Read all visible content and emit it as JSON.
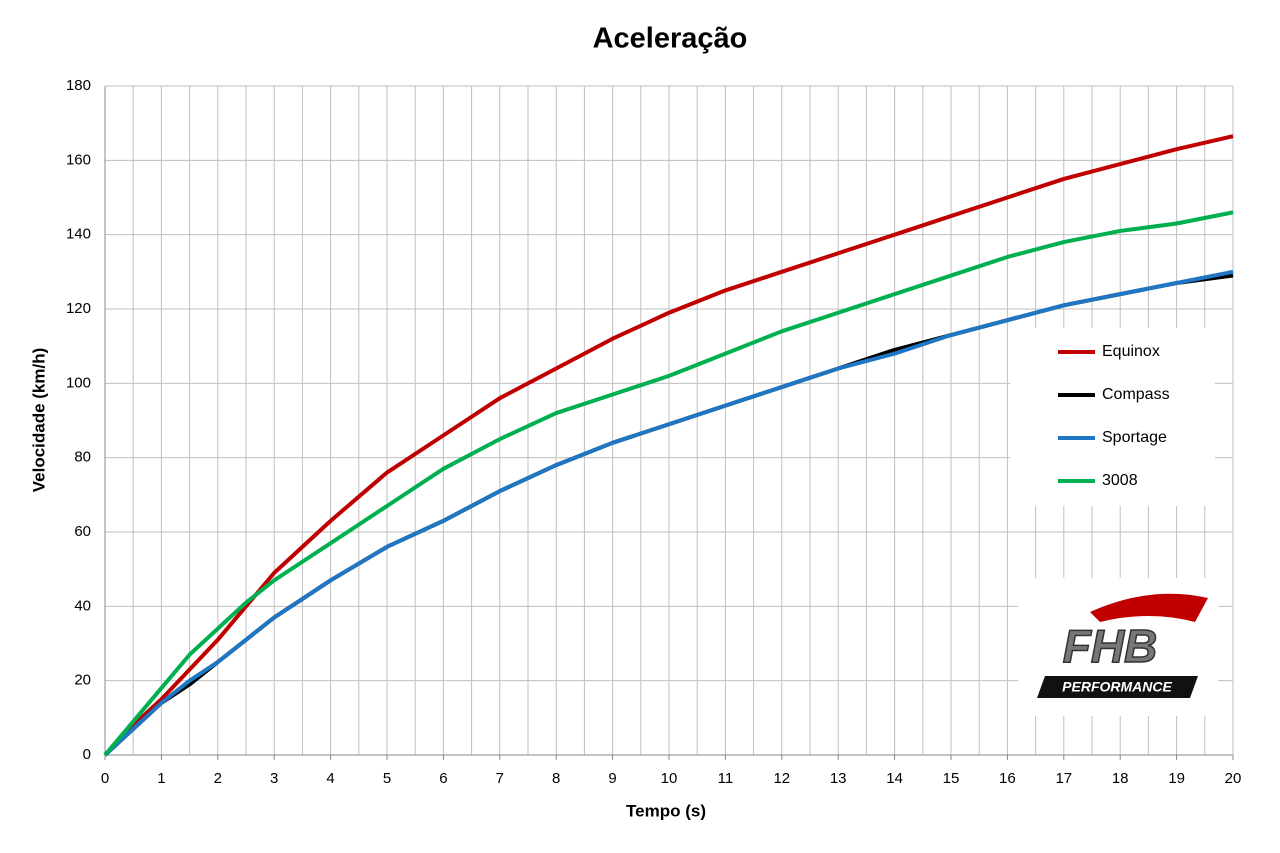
{
  "chart_data": {
    "type": "line",
    "title": "Aceleração",
    "x_label": "Tempo (s)",
    "y_label": "Velocidade (km/h)",
    "x": [
      0,
      0.5,
      1,
      1.5,
      2,
      2.5,
      3,
      3.5,
      4,
      5,
      6,
      7,
      8,
      9,
      10,
      11,
      12,
      13,
      14,
      15,
      16,
      17,
      18,
      19,
      20
    ],
    "series": [
      {
        "name": "Equinox",
        "color": "#c00000",
        "values": [
          0,
          8,
          15,
          23,
          31,
          40,
          49,
          56,
          63,
          76,
          86,
          96,
          104,
          112,
          119,
          125,
          130,
          135,
          140,
          145,
          150,
          155,
          159,
          163,
          166.5
        ]
      },
      {
        "name": "Compass",
        "color": "#000000",
        "values": [
          0,
          7,
          14,
          19,
          25,
          31,
          37,
          42,
          47,
          56,
          63,
          71,
          78,
          84,
          89,
          94,
          99,
          104,
          109,
          113,
          117,
          121,
          124,
          127,
          129
        ]
      },
      {
        "name": "Sportage",
        "color": "#1f77c4",
        "values": [
          0,
          7,
          14,
          20,
          25,
          31,
          37,
          42,
          47,
          56,
          63,
          71,
          78,
          84,
          89,
          94,
          99,
          104,
          108,
          113,
          117,
          121,
          124,
          127,
          130
        ]
      },
      {
        "name": "3008",
        "color": "#00b050",
        "values": [
          0,
          9,
          18,
          27,
          34,
          41,
          47,
          52,
          57,
          67,
          77,
          85,
          92,
          97,
          102,
          108,
          114,
          119,
          124,
          129,
          134,
          138,
          141,
          143,
          146
        ]
      }
    ],
    "xlim": [
      0,
      20
    ],
    "xticks": [
      0,
      1,
      2,
      3,
      4,
      5,
      6,
      7,
      8,
      9,
      10,
      11,
      12,
      13,
      14,
      15,
      16,
      17,
      18,
      19,
      20
    ],
    "xminorticks": [
      0.5,
      1.5,
      2.5,
      3.5,
      4.5,
      5.5,
      6.5,
      7.5,
      8.5,
      9.5,
      10.5,
      11.5,
      12.5,
      13.5,
      14.5,
      15.5,
      16.5,
      17.5,
      18.5,
      19.5
    ],
    "ylim": [
      0,
      180
    ],
    "yticks": [
      0,
      20,
      40,
      60,
      80,
      100,
      120,
      140,
      160,
      180
    ],
    "grid": true,
    "legend": "right",
    "logo": {
      "title": "FHB",
      "subtitle": "PERFORMANCE"
    }
  }
}
